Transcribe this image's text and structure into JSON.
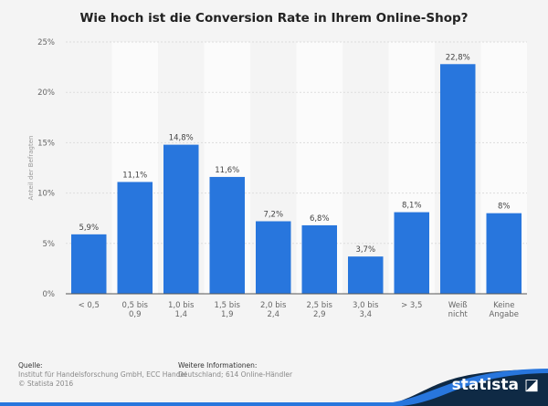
{
  "title": "Wie hoch ist die Conversion Rate in Ihrem Online-Shop?",
  "chart_data": {
    "type": "bar",
    "title": "Wie hoch ist die Conversion Rate in Ihrem Online-Shop?",
    "ylabel": "Anteil der Befragten",
    "xlabel": "",
    "categories": [
      "< 0,5",
      "0,5 bis 0,9",
      "1,0 bis 1,4",
      "1,5 bis 1,9",
      "2,0 bis 2,4",
      "2,5 bis 2,9",
      "3,0 bis 3,4",
      "> 3,5",
      "Weiß nicht",
      "Keine Angabe"
    ],
    "values": [
      5.9,
      11.1,
      14.8,
      11.6,
      7.2,
      6.8,
      3.7,
      8.1,
      22.8,
      8
    ],
    "data_labels": [
      "5,9%",
      "11,1%",
      "14,8%",
      "11,6%",
      "7,2%",
      "6,8%",
      "3,7%",
      "8,1%",
      "22,8%",
      "8%"
    ],
    "ylim": [
      0,
      25
    ],
    "yticks": [
      "0%",
      "5%",
      "10%",
      "15%",
      "20%",
      "25%"
    ],
    "grid": true,
    "bar_color": "#2876dd"
  },
  "footer": {
    "source_heading": "Quelle:",
    "source": "Institut für Handelsforschung GmbH, ECC Handel",
    "copyright": "© Statista 2016",
    "info_heading": "Weitere Informationen:",
    "info": "Deutschland; 614 Online-Händler"
  },
  "brand": "statista"
}
